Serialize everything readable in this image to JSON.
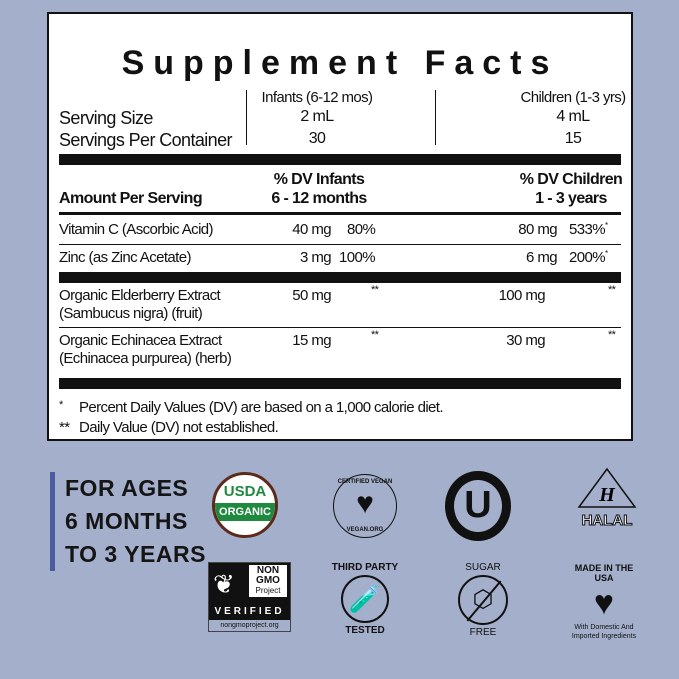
{
  "title": "Supplement Facts",
  "serving": {
    "label_size": "Serving Size",
    "label_servings": "Servings Per Container",
    "infants": {
      "header": "Infants (6-12 mos)",
      "size": "2 mL",
      "servings": "30"
    },
    "children": {
      "header": "Children (1-3 yrs)",
      "size": "4 mL",
      "servings": "15"
    }
  },
  "headers": {
    "amount": "Amount Per Serving",
    "infants_1": "% DV Infants",
    "infants_2": "6 - 12 months",
    "children_1": "% DV Children",
    "children_2": "1 - 3 years"
  },
  "rows": [
    {
      "name": "Vitamin C (Ascorbic Acid)",
      "inf_amt": "40 mg",
      "inf_dv": "80%",
      "ch_amt": "80 mg",
      "ch_dv": "533%",
      "ch_mark": "*"
    },
    {
      "name": "Zinc (as Zinc Acetate)",
      "inf_amt": "3 mg",
      "inf_dv": "100%",
      "ch_amt": "6 mg",
      "ch_dv": "200%",
      "ch_mark": "*"
    },
    {
      "name": "Organic Elderberry Extract",
      "sub": "(Sambucus nigra) (fruit)",
      "inf_amt": "50 mg",
      "inf_dv": "**",
      "ch_amt": "100 mg",
      "ch_dv": "**"
    },
    {
      "name": "Organic Echinacea Extract",
      "sub": "(Echinacea purpurea) (herb)",
      "inf_amt": "15 mg",
      "inf_dv": "**",
      "ch_amt": "30 mg",
      "ch_dv": "**"
    }
  ],
  "footnotes": [
    {
      "mark": "*",
      "text": "Percent Daily Values (DV) are based on a 1,000 calorie diet."
    },
    {
      "mark": "**",
      "text": "Daily Value (DV) not established."
    }
  ],
  "ages": [
    "FOR AGES",
    "6 MONTHS",
    "TO 3 YEARS"
  ],
  "badges": {
    "usda": [
      "USDA",
      "ORGANIC"
    ],
    "vegan": [
      "CERTIFIED VEGAN",
      "VEGAN.ORG"
    ],
    "kosher": "U",
    "halal": [
      "H",
      "HALAL"
    ],
    "nongmo": [
      "NON",
      "GMO",
      "Project",
      "VERIFIED",
      "nongmoproject.org"
    ],
    "third_party": [
      "THIRD PARTY",
      "TESTED"
    ],
    "sugar": [
      "SUGAR",
      "FREE"
    ],
    "usa": [
      "MADE IN THE USA",
      "With Domestic And",
      "Imported Ingredients"
    ]
  },
  "colors": {
    "background": "#a4afcb",
    "usda_green": "#1f8a3f",
    "accent_bar": "#4b5c9e"
  }
}
